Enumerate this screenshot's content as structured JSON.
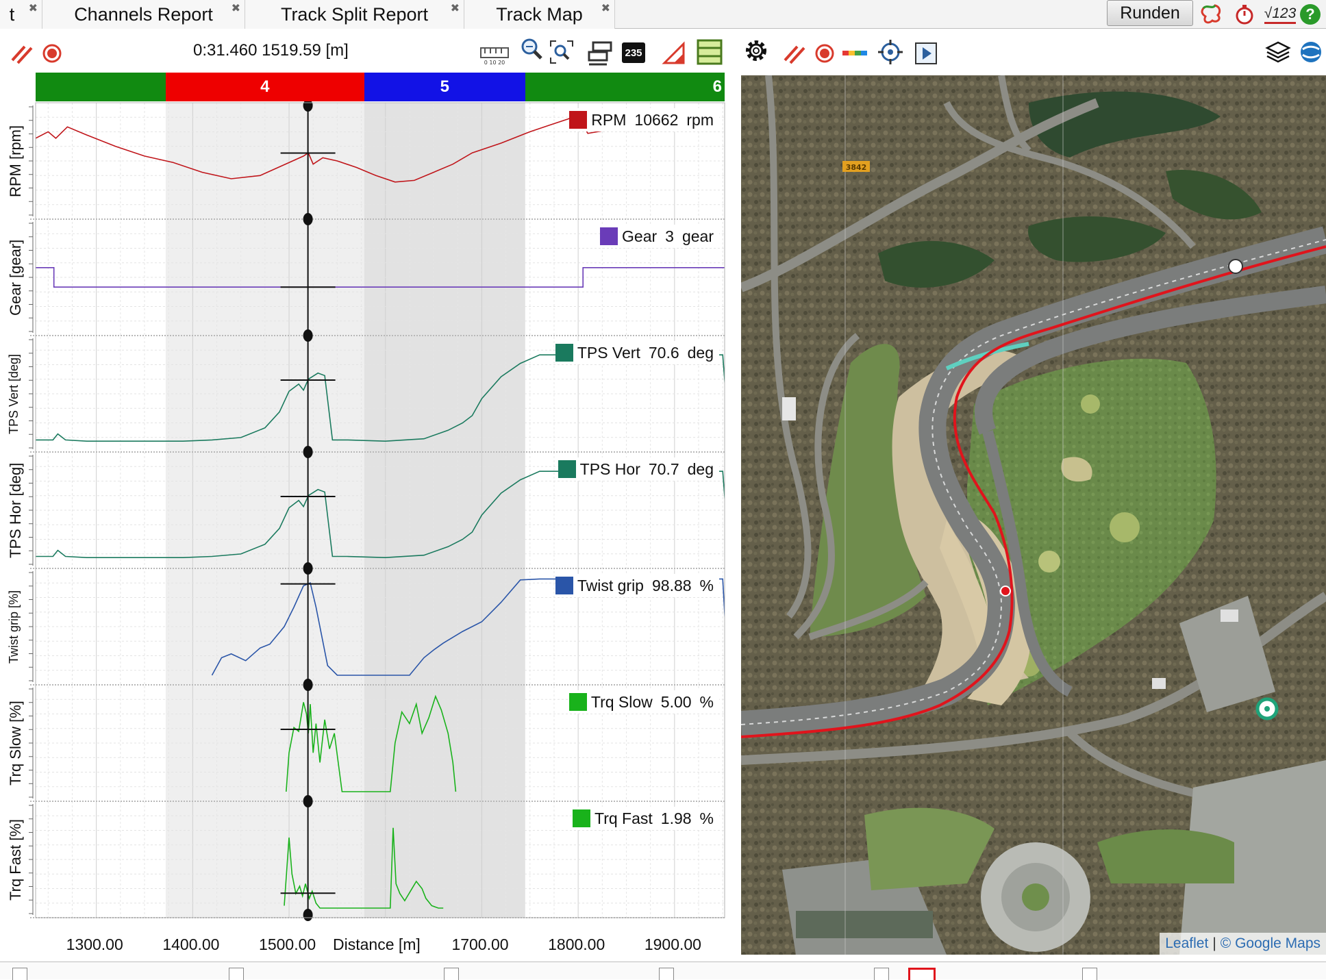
{
  "tabs": [
    {
      "label": "t"
    },
    {
      "label": "Channels Report"
    },
    {
      "label": "Track Split Report"
    },
    {
      "label": "Track Map"
    }
  ],
  "top_right": {
    "runden_label": "Runden",
    "icons": [
      "track-outline-icon",
      "stopwatch-icon",
      "math-channel-icon",
      "help-icon"
    ],
    "math_label": "√123",
    "help_label": "?"
  },
  "toolbar": {
    "cursor_readout": "0:31.460 1519.59 [m]",
    "counter_label": "235",
    "ruler_label": "0 10 20",
    "icons": [
      "stripes-icon",
      "record-icon",
      "ruler-icon",
      "zoom-in-icon",
      "zoom-fit-icon",
      "overlay-icon",
      "counter-icon",
      "triangle-icon",
      "layout-icon"
    ]
  },
  "map_toolbar": {
    "icons": [
      "gear-icon",
      "stripes-icon",
      "record-icon",
      "color-scale-icon",
      "crosshair-icon",
      "play-icon",
      "layers-icon",
      "globe-icon"
    ]
  },
  "segments": [
    {
      "label": "",
      "color": "#118a11",
      "from": 1237,
      "to": 1372
    },
    {
      "label": "4",
      "color": "#ee0000",
      "from": 1372,
      "to": 1578
    },
    {
      "label": "5",
      "color": "#1212e6",
      "from": 1578,
      "to": 1745
    },
    {
      "label": "6",
      "color": "#118a11",
      "from": 1745,
      "to": 1952
    }
  ],
  "chart_data": {
    "type": "line",
    "xlabel": "Distance [m]",
    "xlim": [
      1237,
      1952
    ],
    "x_ticks": [
      "1300.00",
      "1400.00",
      "1500.00",
      "1700.00",
      "1800.00",
      "1900.00"
    ],
    "x_tick_values": [
      1300,
      1400,
      1500,
      1700,
      1800,
      1900
    ],
    "cursor_x": 1519.59,
    "shaded_ranges": [
      [
        1372,
        1578
      ],
      [
        1578,
        1745
      ]
    ],
    "series": [
      {
        "name": "RPM",
        "ylabel": "RPM [rpm]",
        "value": "10662",
        "unit": "rpm",
        "color": "#c0151a",
        "ylim": [
          7000,
          13000
        ],
        "x": [
          1237,
          1250,
          1258,
          1270,
          1290,
          1320,
          1350,
          1380,
          1410,
          1440,
          1470,
          1500,
          1515,
          1520,
          1525,
          1535,
          1550,
          1570,
          1590,
          1610,
          1630,
          1650,
          1670,
          1690,
          1720,
          1750,
          1770,
          1790,
          1800,
          1803,
          1810,
          1830,
          1860,
          1880
        ],
        "y": [
          11400,
          11800,
          11400,
          12100,
          11600,
          10900,
          10300,
          9900,
          9300,
          8900,
          9100,
          9900,
          10300,
          10500,
          9800,
          10200,
          10000,
          9600,
          9100,
          8700,
          8800,
          9300,
          9800,
          10500,
          11100,
          11800,
          12200,
          12600,
          13000,
          12400,
          11700,
          11900,
          12300,
          12600
        ]
      },
      {
        "name": "Gear",
        "ylabel": "Gear [gear]",
        "value": "3",
        "unit": "gear",
        "color": "#6a3cb8",
        "ylim": [
          1,
          6
        ],
        "x": [
          1237,
          1256,
          1256,
          1805,
          1805,
          1952
        ],
        "y": [
          4,
          4,
          3,
          3,
          4,
          4
        ]
      },
      {
        "name": "TPS Vert",
        "ylabel": "TPS Vert [deg]",
        "value": "70.6",
        "unit": "deg",
        "color": "#1a7a5e",
        "ylim": [
          0,
          80
        ],
        "x": [
          1237,
          1255,
          1260,
          1268,
          1290,
          1350,
          1390,
          1420,
          1450,
          1475,
          1490,
          1500,
          1510,
          1515,
          1520,
          1530,
          1537,
          1545,
          1560,
          1600,
          1640,
          1665,
          1680,
          1690,
          1700,
          1720,
          1740,
          1760,
          1780,
          1800,
          1830,
          1950,
          1955
        ],
        "y": [
          2,
          2,
          7,
          2,
          1,
          1,
          1,
          2,
          4,
          12,
          25,
          42,
          48,
          43,
          52,
          57,
          55,
          2,
          2,
          1,
          3,
          10,
          16,
          22,
          36,
          54,
          65,
          72,
          72,
          72,
          72,
          72,
          20
        ]
      },
      {
        "name": "TPS Hor",
        "ylabel": "TPS Hor [deg]",
        "value": "70.7",
        "unit": "deg",
        "color": "#1a7a5e",
        "ylim": [
          0,
          80
        ],
        "x": [
          1237,
          1255,
          1260,
          1268,
          1290,
          1350,
          1390,
          1420,
          1450,
          1475,
          1490,
          1500,
          1510,
          1515,
          1520,
          1530,
          1537,
          1545,
          1560,
          1600,
          1640,
          1665,
          1680,
          1690,
          1700,
          1720,
          1740,
          1760,
          1780,
          1800,
          1830,
          1950,
          1955
        ],
        "y": [
          2,
          2,
          7,
          2,
          1,
          1,
          1,
          2,
          4,
          12,
          25,
          42,
          48,
          43,
          52,
          57,
          55,
          2,
          2,
          1,
          3,
          10,
          16,
          22,
          36,
          54,
          65,
          72,
          72,
          72,
          72,
          72,
          20
        ]
      },
      {
        "name": "Twist grip",
        "ylabel": "Twist grip [%]",
        "value": "98.88",
        "unit": "%",
        "color": "#2a55a8",
        "ylim": [
          0,
          100
        ],
        "x": [
          1420,
          1430,
          1440,
          1455,
          1470,
          1480,
          1495,
          1505,
          1515,
          1522,
          1528,
          1540,
          1550,
          1625,
          1640,
          1650,
          1660,
          1680,
          1700,
          1720,
          1740,
          1760,
          1800,
          1850,
          1950,
          1955
        ],
        "y": [
          0,
          18,
          22,
          15,
          28,
          32,
          50,
          70,
          92,
          95,
          70,
          10,
          0,
          0,
          18,
          26,
          33,
          45,
          55,
          75,
          98,
          99,
          99,
          99,
          99,
          10
        ]
      },
      {
        "name": "Trq Slow",
        "ylabel": "Trq Slow [%]",
        "value": "5.00",
        "unit": "%",
        "color": "#19b21b",
        "ylim": [
          0,
          5
        ],
        "x": [
          1497,
          1500,
          1505,
          1510,
          1515,
          1518,
          1520,
          1522,
          1525,
          1528,
          1532,
          1537,
          1542,
          1547,
          1555,
          1605,
          1610,
          1617,
          1625,
          1632,
          1638,
          1645,
          1652,
          1658,
          1665,
          1670,
          1673
        ],
        "y": [
          0,
          2.0,
          3.3,
          3.1,
          4.6,
          4.0,
          3.0,
          4.5,
          2.0,
          3.5,
          1.5,
          3.7,
          2.2,
          3.0,
          0,
          0,
          2.5,
          4.1,
          3.5,
          4.5,
          3.0,
          3.8,
          4.9,
          4.2,
          3.0,
          1.5,
          0
        ]
      },
      {
        "name": "Trq Fast",
        "ylabel": "Trq Fast [%]",
        "value": "1.98",
        "unit": "%",
        "color": "#19b21b",
        "ylim": [
          0,
          2
        ],
        "x": [
          1495,
          1500,
          1503,
          1507,
          1511,
          1514,
          1517,
          1521,
          1524,
          1528,
          1532,
          1538,
          1545,
          1558,
          1605,
          1608,
          1611,
          1615,
          1620,
          1626,
          1632,
          1638,
          1642,
          1648,
          1655,
          1660
        ],
        "y": [
          0.05,
          1.45,
          0.7,
          0.3,
          0.45,
          0.25,
          0.5,
          0.2,
          0.35,
          0.1,
          0.0,
          0.0,
          0.0,
          0.0,
          0.0,
          1.65,
          0.5,
          0.3,
          0.15,
          0.35,
          0.55,
          0.4,
          0.2,
          0.05,
          0.0,
          0.0
        ]
      }
    ]
  },
  "map": {
    "road_sign_label": "3842",
    "attribution_leaflet": "Leaflet",
    "attribution_separator": "|",
    "attribution_google": "© Google Maps",
    "racing_line_color": "#e0141c"
  },
  "bottom_bar": {
    "items": 7
  }
}
